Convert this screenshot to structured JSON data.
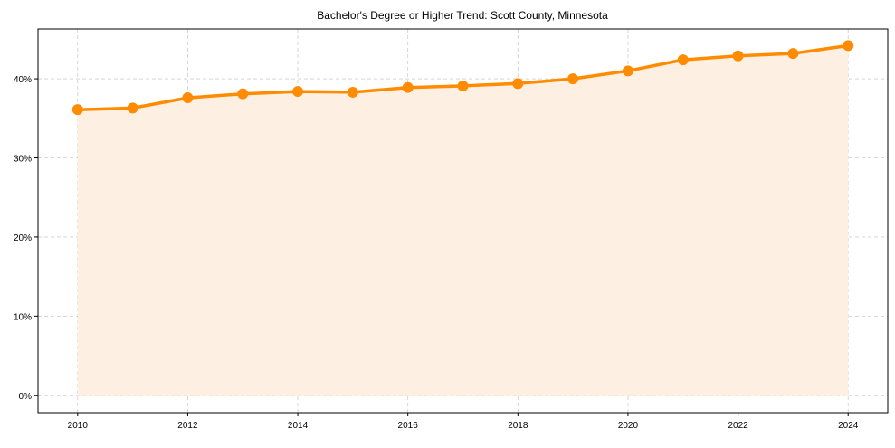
{
  "chart_data": {
    "type": "line",
    "title": "Bachelor's Degree or Higher Trend: Scott County, Minnesota",
    "xlabel": "",
    "ylabel": "",
    "x": [
      2010,
      2011,
      2012,
      2013,
      2014,
      2015,
      2016,
      2017,
      2018,
      2019,
      2020,
      2021,
      2022,
      2023,
      2024
    ],
    "series": [
      {
        "name": "Bachelor's Degree or Higher",
        "values": [
          36.1,
          36.3,
          37.6,
          38.1,
          38.4,
          38.3,
          38.9,
          39.1,
          39.4,
          40.0,
          41.0,
          42.4,
          42.9,
          43.2,
          44.2
        ],
        "color": "#ff8c00",
        "fill": "#fdf0e3"
      }
    ],
    "xlim": [
      2009.28,
      2024.72
    ],
    "ylim": [
      -2.2,
      46.3
    ],
    "xticks": [
      2010,
      2012,
      2014,
      2016,
      2018,
      2020,
      2022,
      2024
    ],
    "xtick_labels": [
      "2010",
      "2012",
      "2014",
      "2016",
      "2018",
      "2020",
      "2022",
      "2024"
    ],
    "yticks": [
      0,
      10,
      20,
      30,
      40
    ],
    "ytick_labels": [
      "0%",
      "10%",
      "20%",
      "30%",
      "40%"
    ],
    "grid": true,
    "legend": "none"
  }
}
